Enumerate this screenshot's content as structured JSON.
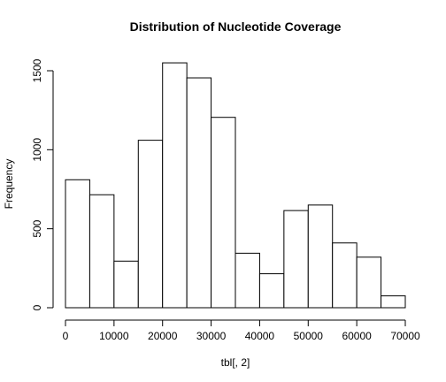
{
  "chart_data": {
    "type": "bar",
    "title": "Distribution of Nucleotide Coverage",
    "xlabel": "tbl[, 2]",
    "ylabel": "Frequency",
    "bin_edges": [
      0,
      5000,
      10000,
      15000,
      20000,
      25000,
      30000,
      35000,
      40000,
      45000,
      50000,
      55000,
      60000,
      65000,
      70000
    ],
    "values": [
      810,
      715,
      295,
      1060,
      1550,
      1455,
      1205,
      345,
      215,
      615,
      650,
      410,
      320,
      75
    ],
    "xlim": [
      0,
      70000
    ],
    "ylim": [
      0,
      1550
    ],
    "x_ticks": [
      0,
      10000,
      20000,
      30000,
      40000,
      50000,
      60000,
      70000
    ],
    "x_tick_labels": [
      "0",
      "10000",
      "20000",
      "30000",
      "40000",
      "50000",
      "60000",
      "70000"
    ],
    "y_ticks": [
      0,
      500,
      1000,
      1500
    ],
    "y_tick_labels": [
      "0",
      "500",
      "1000",
      "1500"
    ],
    "grid": false,
    "colors": {
      "bar_fill": "#ffffff",
      "bar_stroke": "#000000"
    }
  }
}
